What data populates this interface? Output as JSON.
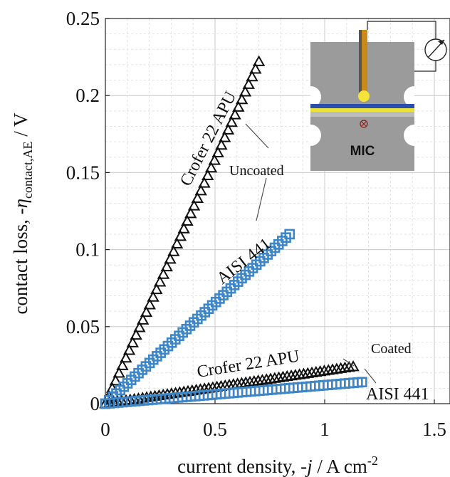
{
  "chart_data": {
    "type": "scatter",
    "xlabel_parts": {
      "prefix": "current density, -",
      "var": "j",
      "unit": " / A cm",
      "exp": "-2"
    },
    "ylabel_parts": {
      "prefix": "contact loss, -",
      "var": "η",
      "sub": "contact,AE",
      "unit": " / V"
    },
    "xlim": [
      0,
      1.5
    ],
    "ylim": [
      0,
      0.25
    ],
    "x_ticks": [
      0,
      0.5,
      1,
      1.5
    ],
    "x_tick_labels": [
      "0",
      "0.5",
      "1",
      "1.5"
    ],
    "y_ticks": [
      0,
      0.05,
      0.1,
      0.15,
      0.2,
      0.25
    ],
    "y_tick_labels": [
      "0",
      "0.05",
      "0.1",
      "0.15",
      "0.2",
      "0.25"
    ],
    "grid": true,
    "series": [
      {
        "name": "Crofer 22 APU",
        "group": "Uncoated",
        "color": "#111111",
        "marker": "triangle",
        "x_start": 0,
        "x_end": 0.7,
        "y_end": 0.222,
        "n_points": 45
      },
      {
        "name": "AISI 441",
        "group": "Uncoated",
        "color": "#3d86c8",
        "marker": "square-outline",
        "x_start": 0,
        "x_end": 0.84,
        "y_end": 0.11,
        "n_points": 50
      },
      {
        "name": "Crofer 22 APU",
        "group": "Coated",
        "color": "#111111",
        "marker": "triangle",
        "x_start": 0,
        "x_end": 1.13,
        "y_end": 0.024,
        "n_points": 60
      },
      {
        "name": "AISI 441",
        "group": "Coated",
        "color": "#3d86c8",
        "marker": "square-outline",
        "x_start": 0,
        "x_end": 1.17,
        "y_end": 0.014,
        "n_points": 60
      }
    ],
    "annotations": {
      "uncoated": "Uncoated",
      "coated": "Coated",
      "crofer_uncoated": "Crofer 22 APU",
      "aisi_uncoated": "AISI 441",
      "crofer_coated": "Crofer 22 APU",
      "aisi_coated": "AISI 441"
    },
    "inset": {
      "label": "MIC"
    }
  }
}
